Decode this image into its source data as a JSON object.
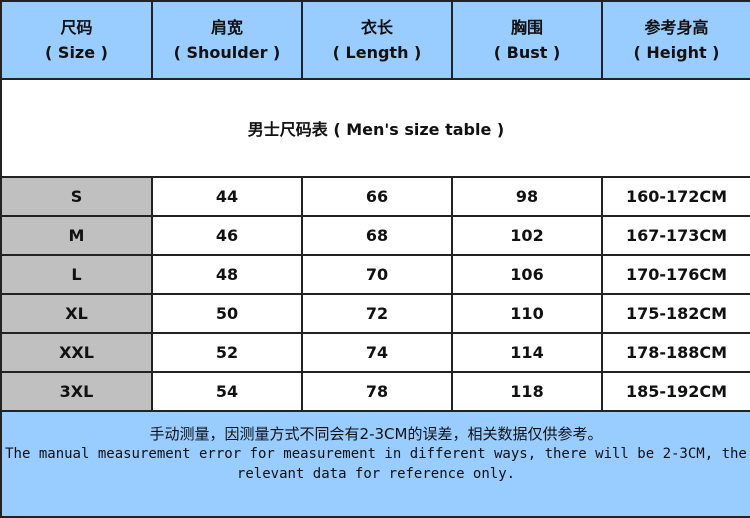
{
  "colors": {
    "header_bg": "#99ccff",
    "size_col_bg": "#c0c0c0",
    "footer_bg": "#99ccff"
  },
  "headers": [
    {
      "cn": "尺码",
      "en": "( Size )"
    },
    {
      "cn": "肩宽",
      "en": "( Shoulder )"
    },
    {
      "cn": "衣长",
      "en": "( Length )"
    },
    {
      "cn": "胸围",
      "en": "( Bust )"
    },
    {
      "cn": "参考身高",
      "en": "( Height )"
    }
  ],
  "title": "男士尺码表 ( Men's size table )",
  "rows": [
    [
      "S",
      "44",
      "66",
      "98",
      "160-172CM"
    ],
    [
      "M",
      "46",
      "68",
      "102",
      "167-173CM"
    ],
    [
      "L",
      "48",
      "70",
      "106",
      "170-176CM"
    ],
    [
      "XL",
      "50",
      "72",
      "110",
      "175-182CM"
    ],
    [
      "XXL",
      "52",
      "74",
      "114",
      "178-188CM"
    ],
    [
      "3XL",
      "54",
      "78",
      "118",
      "185-192CM"
    ]
  ],
  "footer": {
    "cn": "手动测量，因测量方式不同会有2-3CM的误差，相关数据仅供参考。",
    "en": "The manual measurement error for measurement in different ways, there will be 2-3CM, the relevant data for reference only."
  }
}
